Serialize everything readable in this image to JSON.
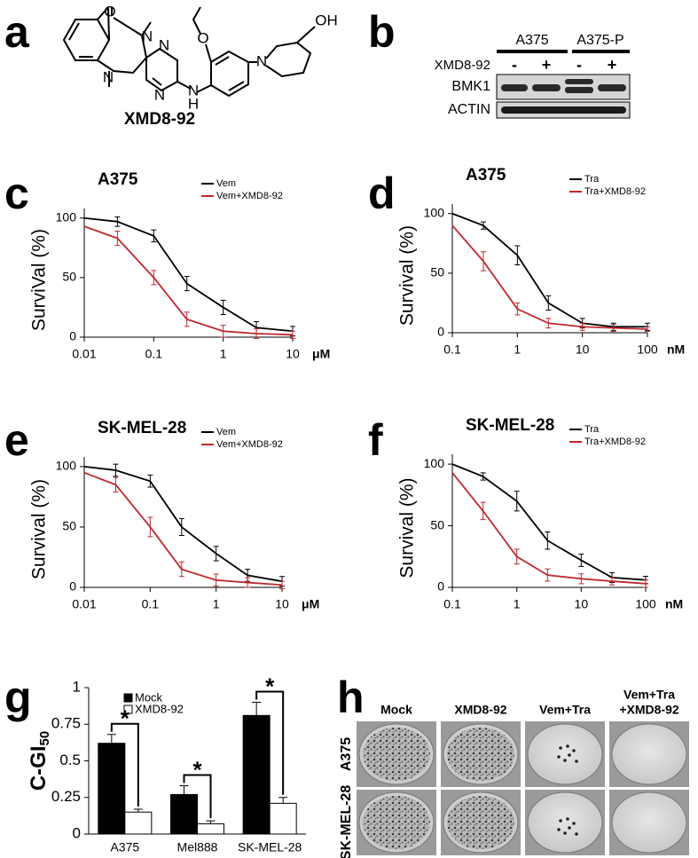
{
  "panel_labels": [
    "a",
    "b",
    "c",
    "d",
    "e",
    "f",
    "g",
    "h"
  ],
  "structure": {
    "atoms": [
      "O",
      "N",
      "N",
      "N",
      "N",
      "N",
      "H",
      "O",
      "N",
      "OH"
    ],
    "name": "XMD8-92"
  },
  "blot": {
    "groups": [
      "A375",
      "A375-P"
    ],
    "treatment": "XMD8-92",
    "lanes": [
      "-",
      "+",
      "-",
      "+"
    ],
    "proteins": [
      "BMK1",
      "ACTIN"
    ]
  },
  "chart_data": [
    {
      "type": "line",
      "title": "A375",
      "ylabel": "SurviVal (%)",
      "xunit": "μM",
      "log_x": true,
      "x": [
        0.01,
        0.03,
        0.1,
        0.3,
        1,
        3,
        10
      ],
      "xlim": [
        0.01,
        10
      ],
      "xticks": [
        0.01,
        0.1,
        1,
        10
      ],
      "ylim": [
        0,
        108
      ],
      "yticks": [
        0,
        50,
        100
      ],
      "series": [
        {
          "name": "Vem",
          "color": "#000000",
          "values": [
            100,
            97,
            85,
            45,
            25,
            8,
            5
          ],
          "errors": [
            null,
            4,
            5,
            6,
            6,
            5,
            4
          ]
        },
        {
          "name": "Vem+XMD8-92",
          "color": "#c0282d",
          "values": [
            93,
            83,
            50,
            15,
            5,
            3,
            2
          ],
          "errors": [
            null,
            6,
            6,
            6,
            5,
            4,
            3
          ]
        }
      ]
    },
    {
      "type": "line",
      "title": "A375",
      "ylabel": "Survival (%)",
      "xunit": "nM",
      "log_x": true,
      "x": [
        0.1,
        0.3,
        1,
        3,
        10,
        30,
        100
      ],
      "xlim": [
        0.1,
        100
      ],
      "xticks": [
        0.1,
        1,
        10,
        100
      ],
      "ylim": [
        0,
        108
      ],
      "yticks": [
        0,
        50,
        100
      ],
      "series": [
        {
          "name": "Tra",
          "color": "#000000",
          "values": [
            100,
            90,
            65,
            25,
            8,
            5,
            5
          ],
          "errors": [
            null,
            3,
            8,
            6,
            4,
            3,
            3
          ]
        },
        {
          "name": "Tra+XMD8-92",
          "color": "#c0282d",
          "values": [
            90,
            60,
            20,
            8,
            5,
            4,
            3
          ],
          "errors": [
            null,
            8,
            5,
            4,
            3,
            3,
            2
          ]
        }
      ]
    },
    {
      "type": "line",
      "title": "SK-MEL-28",
      "ylabel": "Survival (%)",
      "xunit": "μM",
      "log_x": true,
      "x": [
        0.01,
        0.03,
        0.1,
        0.3,
        1,
        3,
        10
      ],
      "xlim": [
        0.01,
        10
      ],
      "xticks": [
        0.01,
        0.1,
        1,
        10
      ],
      "ylim": [
        0,
        108
      ],
      "yticks": [
        0,
        50,
        100
      ],
      "series": [
        {
          "name": "Vem",
          "color": "#000000",
          "values": [
            100,
            97,
            88,
            50,
            28,
            10,
            5
          ],
          "errors": [
            null,
            5,
            5,
            7,
            6,
            5,
            4
          ]
        },
        {
          "name": "Vem+XMD8-92",
          "color": "#c0282d",
          "values": [
            95,
            85,
            50,
            15,
            6,
            4,
            2
          ],
          "errors": [
            null,
            6,
            8,
            6,
            5,
            4,
            3
          ]
        }
      ]
    },
    {
      "type": "line",
      "title": "SK-MEL-28",
      "ylabel": "Survival (%)",
      "xunit": "nM",
      "log_x": true,
      "x": [
        0.1,
        0.3,
        1,
        3,
        10,
        30,
        100
      ],
      "xlim": [
        0.1,
        100
      ],
      "xticks": [
        0.1,
        1,
        10,
        100
      ],
      "ylim": [
        0,
        108
      ],
      "yticks": [
        0,
        50,
        100
      ],
      "series": [
        {
          "name": "Tra",
          "color": "#000000",
          "values": [
            100,
            90,
            70,
            38,
            22,
            8,
            6
          ],
          "errors": [
            null,
            3,
            8,
            7,
            5,
            4,
            3
          ]
        },
        {
          "name": "Tra+XMD8-92",
          "color": "#c0282d",
          "values": [
            93,
            62,
            25,
            10,
            7,
            5,
            3
          ],
          "errors": [
            null,
            7,
            6,
            5,
            4,
            3,
            3
          ]
        }
      ]
    },
    {
      "type": "bar",
      "ylabel": "C-GI",
      "ylabel_subscript": "50",
      "categories": [
        "A375",
        "Mel888",
        "SK-MEL-28"
      ],
      "ylim": [
        0,
        1
      ],
      "yticks": [
        0,
        0.25,
        0.5,
        0.75,
        1
      ],
      "series": [
        {
          "name": "Mock",
          "color": "#000000",
          "values": [
            0.62,
            0.27,
            0.81
          ],
          "errors": [
            0.06,
            0.06,
            0.09
          ]
        },
        {
          "name": "XMD8-92",
          "color": "#ffffff",
          "values": [
            0.15,
            0.07,
            0.21
          ],
          "errors": [
            0.02,
            0.02,
            0.04
          ]
        }
      ],
      "annotations": [
        "*",
        "*",
        "*"
      ]
    }
  ],
  "colony": {
    "columns": [
      [
        "Mock"
      ],
      [
        "XMD8-92"
      ],
      [
        "Vem+Tra"
      ],
      [
        "Vem+Tra",
        "+XMD8-92"
      ]
    ],
    "rows": [
      "A375",
      "SK-MEL-28"
    ]
  }
}
